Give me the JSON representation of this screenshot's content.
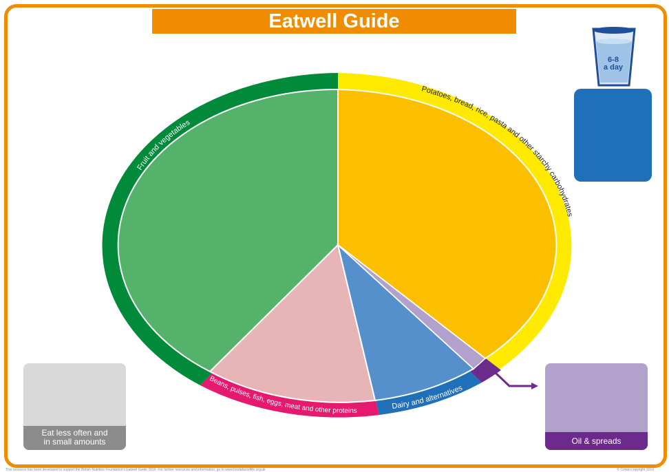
{
  "title": "Eatwell Guide",
  "segments": {
    "fruit_veg": "Fruit and vegetables",
    "starchy": "Potatoes, bread, rice, pasta and other starchy carbohydrates",
    "proteins": "Beans, pulses, fish, eggs, meat and other proteins",
    "dairy": "Dairy and alternatives"
  },
  "water": {
    "amount": "6-8",
    "unit": "a day"
  },
  "eat_less": {
    "label_line1": "Eat less often and",
    "label_line2": "in small amounts"
  },
  "oil": {
    "label": "Oil & spreads"
  },
  "footer": {
    "left": "This resource has been developed to support the British Nutrition Foundation's Eatwell Guide 2016. For further resources and information, go to www.foodafactoflife.org.uk",
    "right": "© Crown copyright 2016"
  },
  "colors": {
    "frame": "#f08c00",
    "fruit_veg_band": "#008a3a",
    "fruit_veg_fill": "#55b26a",
    "starchy_band": "#ffea00",
    "starchy_fill": "#fbbf00",
    "proteins_band": "#e5196e",
    "proteins_fill": "#e7b5b6",
    "dairy_band": "#1f6fb9",
    "dairy_fill": "#5590cd",
    "oil_band": "#6b2a8c",
    "oil_fill": "#b2a2cb",
    "water": "#1f6fb9"
  }
}
